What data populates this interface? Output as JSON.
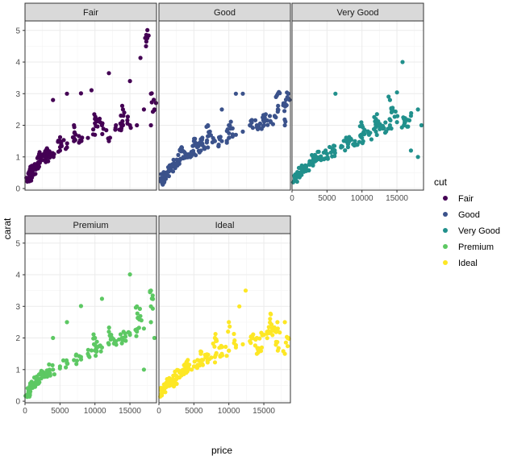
{
  "chart_data": {
    "type": "scatter",
    "title": "",
    "xlabel": "price",
    "ylabel": "carat",
    "xlim": [
      0,
      18800
    ],
    "ylim": [
      -0.05,
      5.3
    ],
    "x_ticks": [
      0,
      5000,
      10000,
      15000
    ],
    "x_tick_labels": [
      "0",
      "5000",
      "10000",
      "15000"
    ],
    "y_ticks": [
      0,
      1,
      2,
      3,
      4,
      5
    ],
    "y_tick_labels": [
      "0",
      "1",
      "2",
      "3",
      "4",
      "5"
    ],
    "facets": [
      "Fair",
      "Good",
      "Very Good",
      "Premium",
      "Ideal"
    ],
    "grid": true,
    "legend": {
      "title": "cut",
      "position": "right",
      "entries": [
        "Fair",
        "Good",
        "Very Good",
        "Premium",
        "Ideal"
      ]
    },
    "colors": {
      "Fair": "#440154",
      "Good": "#3b528b",
      "Very Good": "#21908c",
      "Premium": "#5dc863",
      "Ideal": "#fde725"
    },
    "series": [
      {
        "name": "Fair",
        "points": [
          [
            337,
            0.22
          ],
          [
            500,
            0.3
          ],
          [
            700,
            0.4
          ],
          [
            900,
            0.5
          ],
          [
            1200,
            0.6
          ],
          [
            1500,
            0.7
          ],
          [
            2000,
            0.8
          ],
          [
            2500,
            0.9
          ],
          [
            3000,
            1.0
          ],
          [
            3500,
            1.0
          ],
          [
            4000,
            1.1
          ],
          [
            5000,
            1.2
          ],
          [
            6000,
            1.3
          ],
          [
            7000,
            1.5
          ],
          [
            8000,
            1.5
          ],
          [
            9000,
            1.6
          ],
          [
            10000,
            1.7
          ],
          [
            11000,
            2.0
          ],
          [
            12000,
            1.5
          ],
          [
            13000,
            2.0
          ],
          [
            14000,
            2.0
          ],
          [
            15000,
            2.0
          ],
          [
            16000,
            2.0
          ],
          [
            17000,
            2.5
          ],
          [
            18000,
            2.0
          ],
          [
            18500,
            2.5
          ],
          [
            17500,
            5.01
          ],
          [
            17300,
            4.5
          ],
          [
            16500,
            4.13
          ],
          [
            12000,
            3.65
          ],
          [
            15000,
            3.4
          ],
          [
            9500,
            3.11
          ],
          [
            8000,
            3.01
          ],
          [
            6000,
            3.0
          ],
          [
            4000,
            2.8
          ],
          [
            18000,
            3.0
          ],
          [
            14000,
            2.5
          ],
          [
            10000,
            2.2
          ],
          [
            7000,
            2.0
          ],
          [
            5000,
            1.5
          ],
          [
            3000,
            1.2
          ],
          [
            2000,
            1.0
          ],
          [
            1000,
            0.7
          ]
        ]
      },
      {
        "name": "Good",
        "points": [
          [
            327,
            0.23
          ],
          [
            500,
            0.3
          ],
          [
            800,
            0.4
          ],
          [
            1000,
            0.5
          ],
          [
            1500,
            0.6
          ],
          [
            2000,
            0.7
          ],
          [
            2500,
            0.8
          ],
          [
            3000,
            0.9
          ],
          [
            3500,
            1.0
          ],
          [
            4000,
            1.0
          ],
          [
            5000,
            1.1
          ],
          [
            6000,
            1.2
          ],
          [
            7000,
            1.3
          ],
          [
            8000,
            1.5
          ],
          [
            9000,
            1.5
          ],
          [
            10000,
            1.6
          ],
          [
            11000,
            1.7
          ],
          [
            12000,
            1.8
          ],
          [
            13000,
            2.0
          ],
          [
            14000,
            2.0
          ],
          [
            15000,
            2.0
          ],
          [
            16000,
            2.1
          ],
          [
            17000,
            2.5
          ],
          [
            18000,
            2.0
          ],
          [
            18500,
            3.0
          ],
          [
            18000,
            2.7
          ],
          [
            17000,
            3.0
          ],
          [
            12000,
            3.0
          ],
          [
            11000,
            3.0
          ],
          [
            9000,
            2.5
          ],
          [
            7000,
            2.0
          ],
          [
            5000,
            1.5
          ],
          [
            3000,
            1.2
          ],
          [
            15000,
            2.3
          ],
          [
            10000,
            2.0
          ],
          [
            6000,
            1.5
          ]
        ]
      },
      {
        "name": "Very Good",
        "points": [
          [
            336,
            0.24
          ],
          [
            500,
            0.3
          ],
          [
            800,
            0.4
          ],
          [
            1000,
            0.5
          ],
          [
            1500,
            0.6
          ],
          [
            2000,
            0.7
          ],
          [
            2500,
            0.8
          ],
          [
            3000,
            0.9
          ],
          [
            3500,
            1.0
          ],
          [
            4000,
            1.0
          ],
          [
            5000,
            1.1
          ],
          [
            6000,
            1.2
          ],
          [
            7000,
            1.3
          ],
          [
            8000,
            1.4
          ],
          [
            9000,
            1.5
          ],
          [
            10000,
            1.6
          ],
          [
            11000,
            1.7
          ],
          [
            12000,
            1.8
          ],
          [
            13000,
            1.9
          ],
          [
            14000,
            2.0
          ],
          [
            15000,
            2.1
          ],
          [
            16000,
            2.2
          ],
          [
            17000,
            2.3
          ],
          [
            18000,
            2.5
          ],
          [
            18500,
            2.0
          ],
          [
            15800,
            4.0
          ],
          [
            15000,
            3.04
          ],
          [
            6200,
            3.0
          ],
          [
            14000,
            2.8
          ],
          [
            18000,
            1.0
          ],
          [
            17000,
            1.2
          ],
          [
            10000,
            2.0
          ],
          [
            8000,
            1.5
          ],
          [
            6000,
            1.2
          ],
          [
            12000,
            2.2
          ],
          [
            16000,
            2.0
          ]
        ]
      },
      {
        "name": "Premium",
        "points": [
          [
            326,
            0.21
          ],
          [
            500,
            0.3
          ],
          [
            800,
            0.4
          ],
          [
            1000,
            0.5
          ],
          [
            1500,
            0.6
          ],
          [
            2000,
            0.7
          ],
          [
            2500,
            0.8
          ],
          [
            3000,
            0.9
          ],
          [
            3500,
            1.0
          ],
          [
            4000,
            1.0
          ],
          [
            5000,
            1.1
          ],
          [
            6000,
            1.2
          ],
          [
            7000,
            1.3
          ],
          [
            8000,
            1.4
          ],
          [
            9000,
            1.5
          ],
          [
            10000,
            1.6
          ],
          [
            11000,
            1.7
          ],
          [
            12000,
            1.8
          ],
          [
            13000,
            1.9
          ],
          [
            14000,
            2.0
          ],
          [
            15000,
            2.1
          ],
          [
            16000,
            2.2
          ],
          [
            17000,
            2.3
          ],
          [
            18000,
            2.5
          ],
          [
            18500,
            2.0
          ],
          [
            15000,
            4.01
          ],
          [
            18000,
            3.5
          ],
          [
            11000,
            3.24
          ],
          [
            8000,
            3.01
          ],
          [
            6000,
            2.5
          ],
          [
            4000,
            2.0
          ],
          [
            18000,
            3.0
          ],
          [
            16000,
            3.0
          ],
          [
            17000,
            1.0
          ],
          [
            12000,
            2.2
          ],
          [
            10000,
            2.0
          ]
        ]
      },
      {
        "name": "Ideal",
        "points": [
          [
            326,
            0.23
          ],
          [
            500,
            0.3
          ],
          [
            800,
            0.4
          ],
          [
            1000,
            0.5
          ],
          [
            1500,
            0.6
          ],
          [
            2000,
            0.7
          ],
          [
            2500,
            0.8
          ],
          [
            3000,
            0.9
          ],
          [
            3500,
            1.0
          ],
          [
            4000,
            1.0
          ],
          [
            5000,
            1.1
          ],
          [
            6000,
            1.2
          ],
          [
            7000,
            1.3
          ],
          [
            8000,
            1.4
          ],
          [
            9000,
            1.5
          ],
          [
            10000,
            1.6
          ],
          [
            11000,
            1.7
          ],
          [
            12000,
            1.8
          ],
          [
            13000,
            1.9
          ],
          [
            14000,
            2.0
          ],
          [
            15000,
            2.1
          ],
          [
            16000,
            2.2
          ],
          [
            17000,
            2.3
          ],
          [
            18000,
            2.5
          ],
          [
            18500,
            2.0
          ],
          [
            12400,
            3.5
          ],
          [
            11500,
            3.0
          ],
          [
            16000,
            2.75
          ],
          [
            10000,
            2.5
          ],
          [
            8000,
            2.0
          ],
          [
            6000,
            1.5
          ],
          [
            4000,
            1.2
          ],
          [
            18000,
            1.5
          ],
          [
            17000,
            1.6
          ],
          [
            14000,
            1.5
          ],
          [
            2000,
            0.6
          ]
        ]
      }
    ]
  }
}
